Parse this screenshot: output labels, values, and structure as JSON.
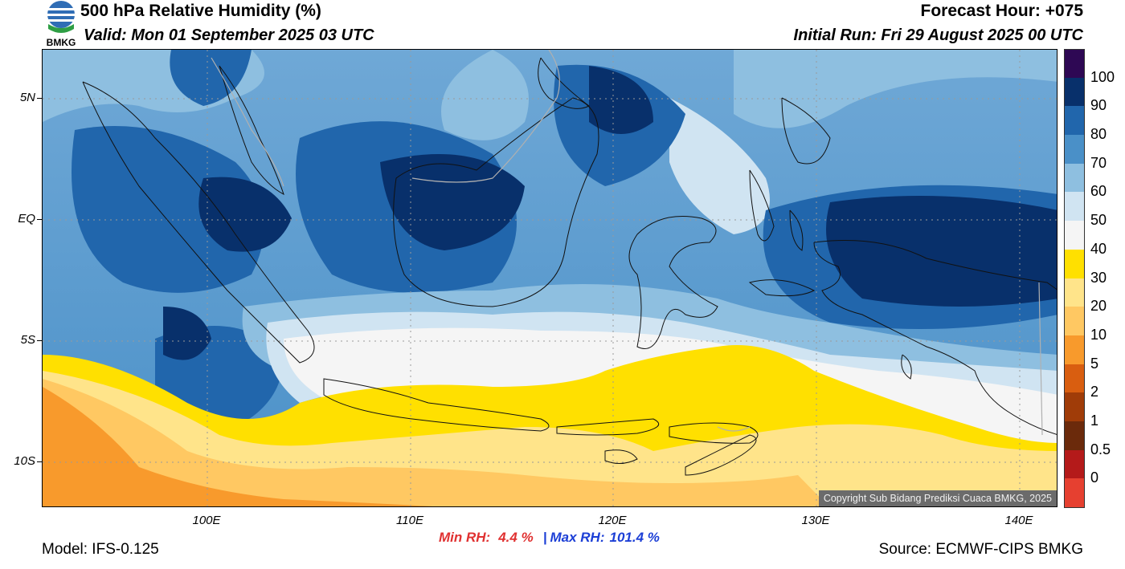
{
  "header": {
    "title": "500 hPa Relative Humidity (%)",
    "valid": "Valid: Mon 01 September 2025 03 UTC",
    "forecast_hour": "Forecast Hour: +075",
    "initial_run": "Initial Run: Fri 29 August 2025 00 UTC",
    "logo_text": "BMKG"
  },
  "map": {
    "lat_labels": [
      "5N",
      "EQ",
      "5S",
      "10S"
    ],
    "lon_labels": [
      "100E",
      "110E",
      "120E",
      "130E",
      "140E"
    ],
    "copyright": "Copyright Sub Bidang Prediksi Cuaca BMKG, 2025"
  },
  "stats": {
    "min_label": "Min RH:",
    "min_value": "4.4 %",
    "separator": "|",
    "max_label": "Max RH:",
    "max_value": "101.4 %"
  },
  "footer": {
    "model": "Model: IFS-0.125",
    "source": "Source: ECMWF-CIPS BMKG"
  },
  "colorbar": {
    "labels": [
      "100",
      "90",
      "80",
      "70",
      "60",
      "50",
      "40",
      "30",
      "20",
      "10",
      "5",
      "2",
      "1",
      "0.5",
      "0"
    ],
    "colors": [
      "#2e0854",
      "#08306b",
      "#2166ac",
      "#4a90c8",
      "#8ebfe0",
      "#d0e4f2",
      "#f5f5f5",
      "#ffe000",
      "#ffe48a",
      "#ffc862",
      "#f89a2c",
      "#d95e10",
      "#a03c08",
      "#6b2a0b",
      "#b41a1a",
      "#e64030"
    ]
  }
}
